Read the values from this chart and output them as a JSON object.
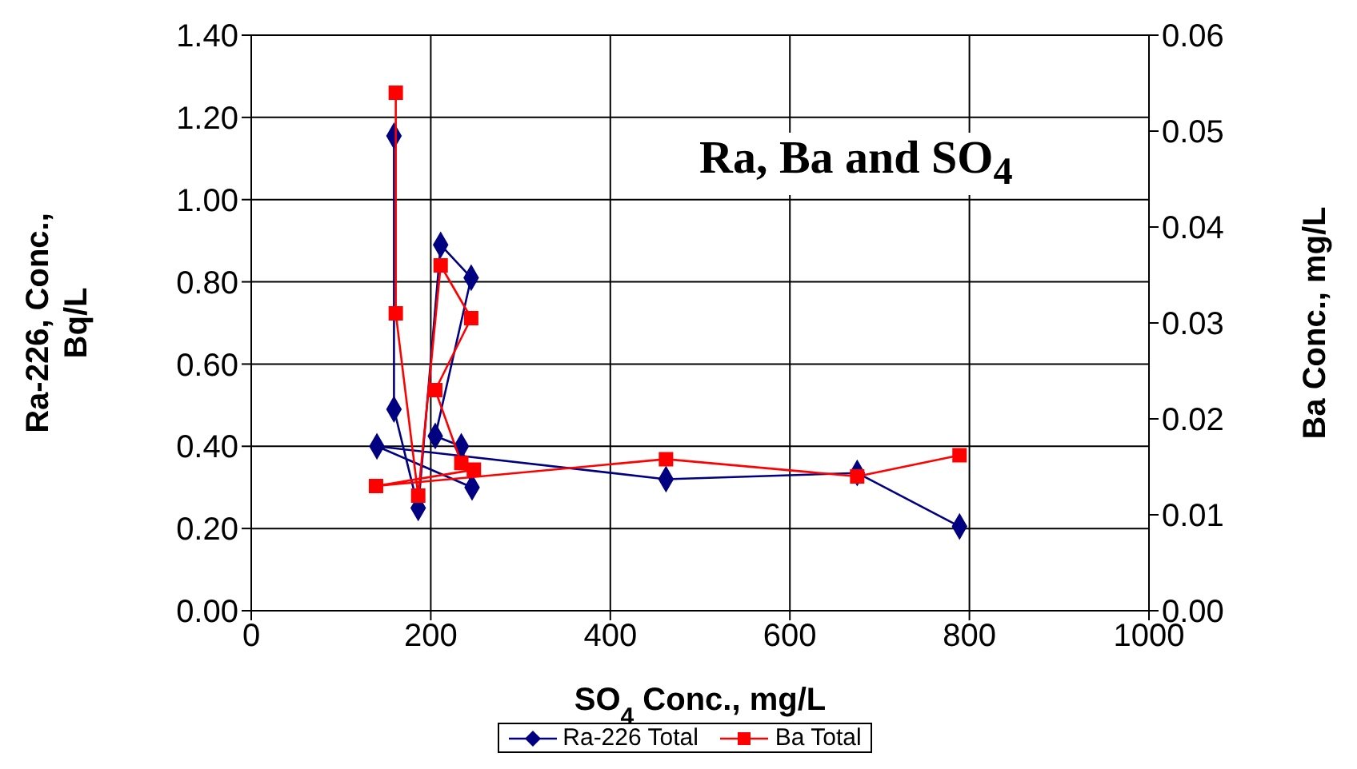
{
  "chart_data": {
    "type": "line",
    "xlabel": "SO$_{4}$ Conc., mg/L",
    "ylabel": "Ra-226, Conc., Bq/L",
    "y2label": "Ba Conc., mg/L",
    "annotations": [
      "Ra, Ba and SO$_{4}$"
    ],
    "xlim": [
      0,
      1000
    ],
    "xticks": [
      0,
      200,
      400,
      600,
      800,
      1000
    ],
    "ylim": [
      0,
      1.4
    ],
    "yticks": [
      {
        "value": 0,
        "label": "0.00"
      },
      {
        "value": 0.2,
        "label": "0.20"
      },
      {
        "value": 0.4,
        "label": "0.40"
      },
      {
        "value": 0.6,
        "label": "0.60"
      },
      {
        "value": 0.8,
        "label": "0.80"
      },
      {
        "value": 1,
        "label": "1.00"
      },
      {
        "value": 1.2,
        "label": "1.20"
      },
      {
        "value": 1.4,
        "label": "1.40"
      }
    ],
    "y2lim": [
      0,
      0.06
    ],
    "y2ticks": [
      {
        "value": 0,
        "label": "0.00"
      },
      {
        "value": 0.01,
        "label": "0.01"
      },
      {
        "value": 0.02,
        "label": "0.02"
      },
      {
        "value": 0.03,
        "label": "0.03"
      },
      {
        "value": 0.04,
        "label": "0.04"
      },
      {
        "value": 0.05,
        "label": "0.05"
      },
      {
        "value": 0.06,
        "label": "0.06"
      }
    ],
    "grid": true,
    "legend": "bottom",
    "series": [
      {
        "name": "Ra-226 Total",
        "color": "#000080",
        "marker": "diamond",
        "x": [
          159,
          159,
          186,
          211,
          245,
          205,
          234,
          246,
          140,
          462,
          675,
          789
        ],
        "values": [
          1.155,
          0.49,
          0.25,
          0.89,
          0.81,
          0.425,
          0.4,
          0.3,
          0.4,
          0.32,
          0.335,
          0.205
        ]
      },
      {
        "name": "Ba Total",
        "color": "#ff0000",
        "marker": "square",
        "axis": "y2",
        "x": [
          161,
          161,
          186,
          211,
          245,
          205,
          234,
          248,
          139,
          462,
          675,
          789
        ],
        "values": [
          0.054,
          0.031,
          0.012,
          0.036,
          0.0305,
          0.023,
          0.0154,
          0.0147,
          0.013,
          0.0158,
          0.014,
          0.0162
        ]
      }
    ]
  }
}
